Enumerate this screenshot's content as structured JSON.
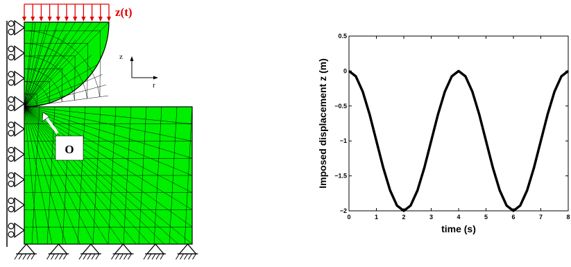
{
  "left_panel": {
    "load_label": "z(t)",
    "point_label": "O",
    "axis_z": "z",
    "axis_r": "r",
    "mesh_color": "#00ee00",
    "load_color": "#e00000"
  },
  "chart_data": {
    "type": "line",
    "title": "",
    "xlabel": "time (s)",
    "ylabel": "Imposed displacement z (m)",
    "xlim": [
      0,
      8
    ],
    "ylim": [
      -2,
      0.5
    ],
    "xticks": [
      0,
      1,
      2,
      3,
      4,
      5,
      6,
      7,
      8
    ],
    "yticks": [
      -2,
      -1.5,
      -1,
      -0.5,
      0,
      0.5
    ],
    "ytick_labels": [
      "−2",
      "−1.5",
      "−1",
      "−0.5",
      "0",
      "0.5"
    ],
    "grid": false,
    "series": [
      {
        "color": "#000000",
        "x": [
          0,
          0.25,
          0.5,
          0.75,
          1,
          1.25,
          1.5,
          1.75,
          2,
          2.25,
          2.5,
          2.75,
          3,
          3.25,
          3.5,
          3.75,
          4,
          4.25,
          4.5,
          4.75,
          5,
          5.25,
          5.5,
          5.75,
          6,
          6.25,
          6.5,
          6.75,
          7,
          7.25,
          7.5,
          7.75,
          8
        ],
        "y": [
          0,
          -0.076,
          -0.293,
          -0.617,
          -1,
          -1.383,
          -1.707,
          -1.924,
          -2,
          -1.924,
          -1.707,
          -1.383,
          -1,
          -0.617,
          -0.293,
          -0.076,
          0,
          -0.076,
          -0.293,
          -0.617,
          -1,
          -1.383,
          -1.707,
          -1.924,
          -2,
          -1.924,
          -1.707,
          -1.383,
          -1,
          -0.617,
          -0.293,
          -0.076,
          0
        ]
      }
    ]
  }
}
